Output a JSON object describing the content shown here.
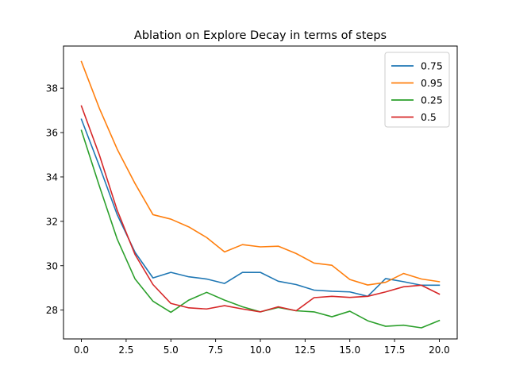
{
  "chart_data": {
    "type": "line",
    "title": "Ablation on Explore Decay in terms of steps",
    "xlabel": "",
    "ylabel": "",
    "xlim": [
      -1.0,
      21.0
    ],
    "ylim": [
      26.7,
      39.9
    ],
    "xticks": [
      0.0,
      2.5,
      5.0,
      7.5,
      10.0,
      12.5,
      15.0,
      17.5,
      20.0
    ],
    "xtick_labels": [
      "0.0",
      "2.5",
      "5.0",
      "7.5",
      "10.0",
      "12.5",
      "15.0",
      "17.5",
      "20.0"
    ],
    "yticks": [
      28,
      30,
      32,
      34,
      36,
      38
    ],
    "ytick_labels": [
      "28",
      "30",
      "32",
      "34",
      "36",
      "38"
    ],
    "grid": false,
    "legend_position": "top-right",
    "x": [
      0,
      1,
      2,
      3,
      4,
      5,
      6,
      7,
      8,
      9,
      10,
      11,
      12,
      13,
      14,
      15,
      16,
      17,
      18,
      19,
      20
    ],
    "series": [
      {
        "name": "0.75",
        "color": "#1f77b4",
        "values": [
          36.6,
          34.5,
          32.3,
          30.6,
          29.45,
          29.7,
          29.5,
          29.4,
          29.2,
          29.7,
          29.7,
          29.3,
          29.15,
          28.9,
          28.85,
          28.82,
          28.62,
          29.42,
          29.28,
          29.12,
          29.12
        ]
      },
      {
        "name": "0.95",
        "color": "#ff7f0e",
        "values": [
          39.2,
          37.1,
          35.25,
          33.7,
          32.3,
          32.1,
          31.75,
          31.27,
          30.62,
          30.95,
          30.85,
          30.88,
          30.55,
          30.12,
          30.02,
          29.38,
          29.13,
          29.25,
          29.65,
          29.4,
          29.28
        ]
      },
      {
        "name": "0.25",
        "color": "#2ca02c",
        "values": [
          36.1,
          33.6,
          31.2,
          29.4,
          28.4,
          27.9,
          28.45,
          28.8,
          28.45,
          28.15,
          27.92,
          28.12,
          27.97,
          27.92,
          27.7,
          27.95,
          27.52,
          27.27,
          27.32,
          27.2,
          27.53
        ]
      },
      {
        "name": "0.5",
        "color": "#d62728",
        "values": [
          37.2,
          35.0,
          32.5,
          30.5,
          29.15,
          28.3,
          28.1,
          28.05,
          28.2,
          28.05,
          27.92,
          28.15,
          27.97,
          28.56,
          28.62,
          28.57,
          28.62,
          28.82,
          29.05,
          29.12,
          28.72
        ]
      }
    ]
  }
}
